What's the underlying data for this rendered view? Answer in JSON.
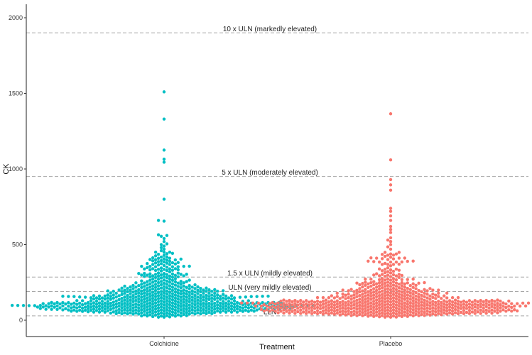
{
  "chart_data": {
    "type": "scatter",
    "subtype": "beeswarm",
    "xlabel": "Treatment",
    "ylabel": "CK",
    "ylim": [
      -55,
      2060
    ],
    "y_ticks": [
      0,
      500,
      1000,
      1500,
      2000
    ],
    "y_tick_labels": [
      "0",
      "500",
      "1000",
      "1500",
      "2000"
    ],
    "categories": [
      "Colchicine",
      "Placebo"
    ],
    "grid": false,
    "legend": "none",
    "series": [
      {
        "category": "Colchicine",
        "color": "#00BFC4",
        "outliers": [
          1510,
          1330,
          1125,
          1065,
          1045,
          800,
          660,
          655,
          565,
          560,
          555,
          540,
          520,
          505,
          500,
          490,
          480,
          470,
          460
        ],
        "bulk_range": [
          20,
          450
        ],
        "bulk_mode": 115,
        "n_points": 700
      },
      {
        "category": "Placebo",
        "color": "#F8766D",
        "outliers": [
          1365,
          1060,
          930,
          895,
          860,
          740,
          720,
          690,
          660,
          620,
          600,
          580,
          545,
          530,
          520,
          500,
          485,
          470
        ],
        "bulk_range": [
          20,
          450
        ],
        "bulk_mode": 95,
        "n_points": 700
      }
    ],
    "reference_lines": [
      {
        "label": "10 x ULN (markedly elevated)",
        "value": 1900
      },
      {
        "label": "5 x ULN (moderately elevated)",
        "value": 950
      },
      {
        "label": "1.5 x ULN (mildly elevated)",
        "value": 285
      },
      {
        "label": "ULN (very mildly elevated)",
        "value": 190
      },
      {
        "label": "LLN",
        "value": 29
      }
    ]
  }
}
